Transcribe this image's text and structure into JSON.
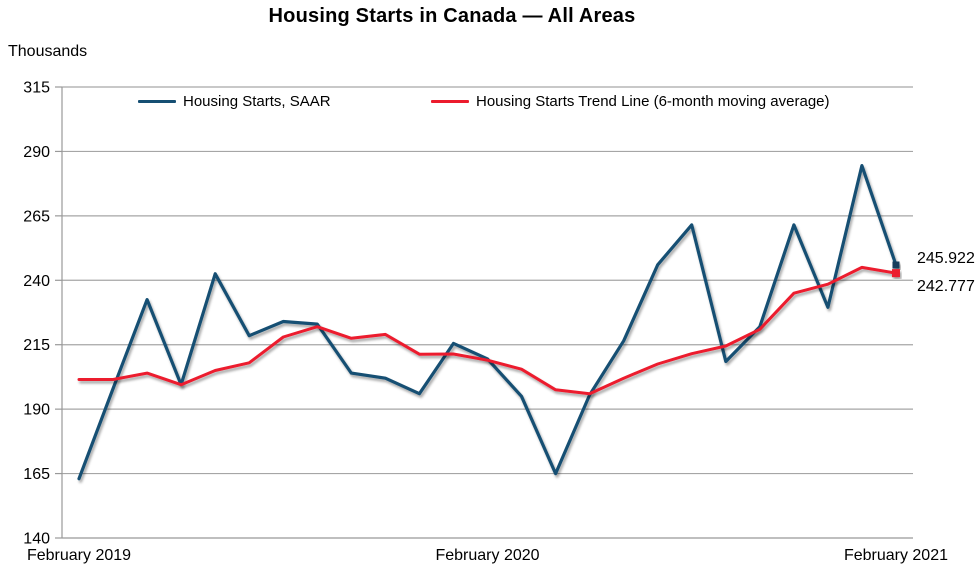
{
  "title": "Housing Starts in Canada — All Areas",
  "y_axis_unit_label": "Thousands",
  "colors": {
    "saar_line": "#164f73",
    "trend_line": "#ec1b2d",
    "gridline": "#a6a6a6",
    "axis": "#999999",
    "text": "#000000"
  },
  "chart_data": {
    "type": "line",
    "title": "Housing Starts in Canada — All Areas",
    "ylabel": "Thousands",
    "ylim": [
      140,
      315
    ],
    "grid": true,
    "legend_position": "top-inside",
    "y_ticks": [
      140,
      165,
      190,
      215,
      240,
      265,
      290,
      315
    ],
    "x_ticks": [
      {
        "index": 0,
        "label": "February 2019"
      },
      {
        "index": 12,
        "label": "February 2020"
      },
      {
        "index": 24,
        "label": "February 2021"
      }
    ],
    "categories": [
      "Feb 2019",
      "Mar 2019",
      "Apr 2019",
      "May 2019",
      "Jun 2019",
      "Jul 2019",
      "Aug 2019",
      "Sep 2019",
      "Oct 2019",
      "Nov 2019",
      "Dec 2019",
      "Jan 2020",
      "Feb 2020",
      "Mar 2020",
      "Apr 2020",
      "May 2020",
      "Jun 2020",
      "Jul 2020",
      "Aug 2020",
      "Sep 2020",
      "Oct 2020",
      "Nov 2020",
      "Dec 2020",
      "Jan 2021",
      "Feb 2021"
    ],
    "series": [
      {
        "name": "Housing Starts, SAAR",
        "color": "#164f73",
        "marker_color": "#123c5c",
        "values": [
          163,
          198,
          232.5,
          199.5,
          242.5,
          218.5,
          224,
          223,
          204,
          202,
          196,
          215.5,
          209.5,
          195,
          165,
          195.5,
          216.5,
          246,
          261.5,
          208.5,
          222,
          261.5,
          229.5,
          284.5,
          245.922
        ]
      },
      {
        "name": "Housing Starts Trend Line (6-month moving average)",
        "color": "#ec1b2d",
        "marker_color": "#ec1b2d",
        "values": [
          201.5,
          201.5,
          204,
          199.5,
          205,
          208,
          218,
          222,
          217.5,
          219,
          211.3,
          211.4,
          209,
          205.5,
          197.5,
          196,
          202,
          207.5,
          211.5,
          214.5,
          221,
          235,
          238.5,
          245,
          242.777
        ]
      }
    ],
    "end_labels": [
      "245.922",
      "242.777"
    ]
  }
}
